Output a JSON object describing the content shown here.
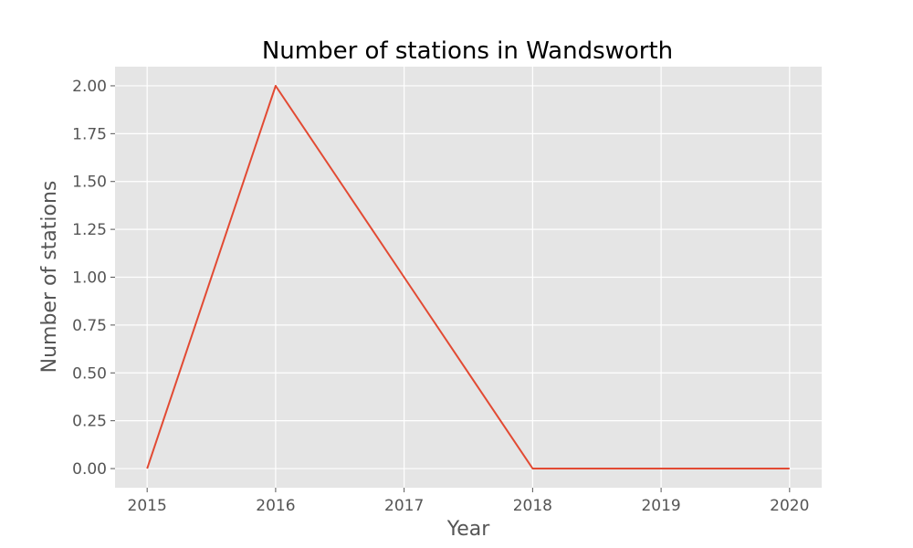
{
  "chart_data": {
    "type": "line",
    "title": "Number of stations in Wandsworth",
    "xlabel": "Year",
    "ylabel": "Number of stations",
    "x": [
      2015,
      2016,
      2017,
      2018,
      2019,
      2020
    ],
    "series": [
      {
        "values": [
          0,
          2,
          1,
          0,
          0,
          0
        ]
      }
    ],
    "xlim": [
      2014.75,
      2020.25
    ],
    "ylim": [
      -0.1,
      2.1
    ],
    "yticks": [
      0,
      0.25,
      0.5,
      0.75,
      1.0,
      1.25,
      1.5,
      1.75,
      2.0
    ],
    "ytick_labels": [
      "0.00",
      "0.25",
      "0.50",
      "0.75",
      "1.00",
      "1.25",
      "1.50",
      "1.75",
      "2.00"
    ],
    "xticks": [
      2015,
      2016,
      2017,
      2018,
      2019,
      2020
    ],
    "xtick_labels": [
      "2015",
      "2016",
      "2017",
      "2018",
      "2019",
      "2020"
    ],
    "grid": true,
    "style": "ggplot",
    "colors": {
      "background": "#e5e5e5",
      "line": "#e24a33",
      "grid": "#ffffff",
      "tick_text": "#555555"
    }
  }
}
